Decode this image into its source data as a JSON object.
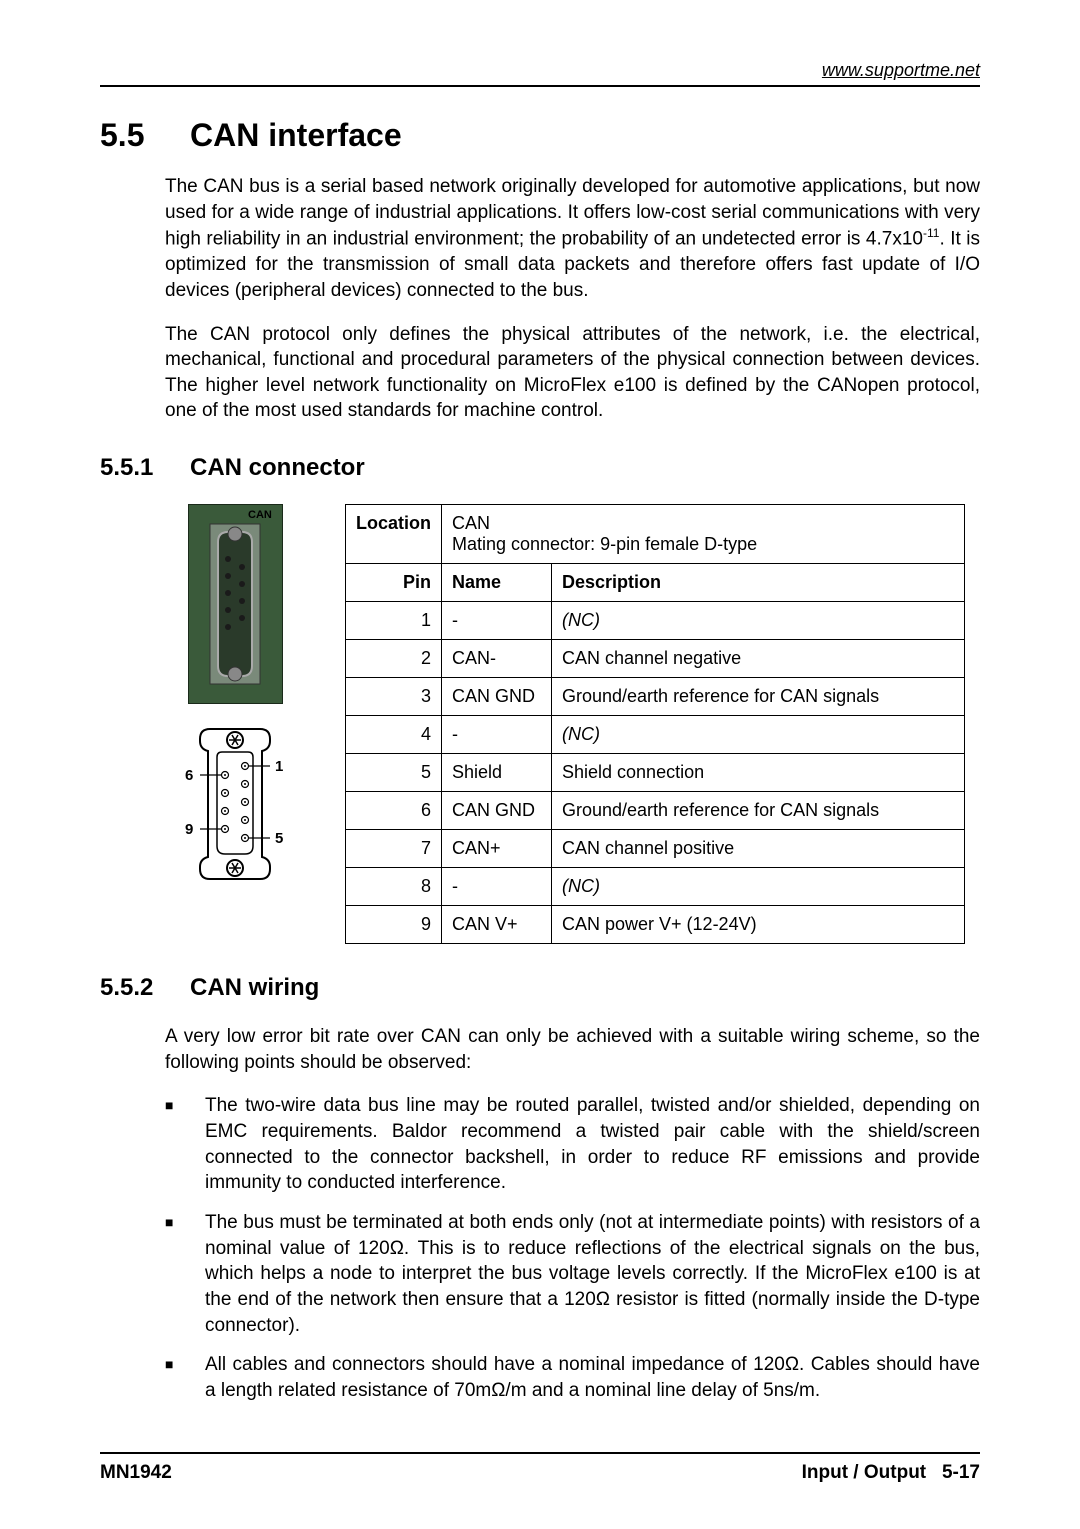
{
  "header": {
    "url": "www.supportme.net"
  },
  "section": {
    "number": "5.5",
    "title": "CAN interface",
    "para1_a": "The CAN bus is a serial based network originally developed for automotive applications, but now used for a wide range of industrial applications.  It offers low-cost serial communications with very high reliability in an industrial environment; the probability of an undetected error is 4.7x10",
    "para1_sup": "-11",
    "para1_b": ".  It is optimized for the transmission of small data packets and therefore offers fast update of I/O devices (peripheral devices) connected to the bus.",
    "para2": "The CAN protocol only defines the physical attributes of the network, i.e. the electrical, mechanical, functional and procedural parameters of the physical connection between devices. The higher level network functionality on MicroFlex e100 is defined by the CANopen protocol, one of the most used standards for machine control."
  },
  "sub1": {
    "number": "5.5.1",
    "title": "CAN connector",
    "diagram": {
      "label_top": "CAN",
      "pin_left_top": "6",
      "pin_right_top": "1",
      "pin_left_bot": "9",
      "pin_right_bot": "5"
    },
    "table": {
      "loc_label": "Location",
      "loc_value_l1": "CAN",
      "loc_value_l2": "Mating connector: 9-pin female D-type",
      "col_pin": "Pin",
      "col_name": "Name",
      "col_desc": "Description",
      "rows": [
        {
          "pin": "1",
          "name": "-",
          "desc": "(NC)",
          "italic": true
        },
        {
          "pin": "2",
          "name": "CAN-",
          "desc": "CAN channel negative",
          "italic": false
        },
        {
          "pin": "3",
          "name": "CAN GND",
          "desc": "Ground/earth reference for CAN signals",
          "italic": false
        },
        {
          "pin": "4",
          "name": "-",
          "desc": "(NC)",
          "italic": true
        },
        {
          "pin": "5",
          "name": "Shield",
          "desc": "Shield connection",
          "italic": false
        },
        {
          "pin": "6",
          "name": "CAN GND",
          "desc": "Ground/earth reference for CAN signals",
          "italic": false
        },
        {
          "pin": "7",
          "name": "CAN+",
          "desc": "CAN channel positive",
          "italic": false
        },
        {
          "pin": "8",
          "name": "-",
          "desc": "(NC)",
          "italic": true
        },
        {
          "pin": "9",
          "name": "CAN V+",
          "desc": "CAN power V+ (12-24V)",
          "italic": false
        }
      ]
    }
  },
  "sub2": {
    "number": "5.5.2",
    "title": "CAN wiring",
    "intro": "A very low error bit rate over CAN can only be achieved with a suitable wiring scheme, so the following points should be observed:",
    "bullets": [
      "The two-wire data bus line may be routed parallel, twisted and/or shielded, depending on EMC requirements.  Baldor recommend a twisted pair cable with the shield/screen connected to the connector backshell, in order to reduce RF emissions and provide immunity to conducted interference.",
      "The bus must be terminated at both ends only (not at intermediate points) with resistors of a nominal value of 120Ω. This is to reduce reflections of the electrical signals on the bus, which helps a node to interpret the bus voltage levels correctly.  If the MicroFlex e100 is at the end of the network then ensure that a 120Ω resistor is fitted (normally inside the D-type connector).",
      "All cables and connectors should have a nominal impedance of 120Ω. Cables should have a length related resistance of 70mΩ/m and a nominal line delay of 5ns/m."
    ]
  },
  "footer": {
    "left": "MN1942",
    "right_a": "Input / Output",
    "right_b": "5-17"
  }
}
